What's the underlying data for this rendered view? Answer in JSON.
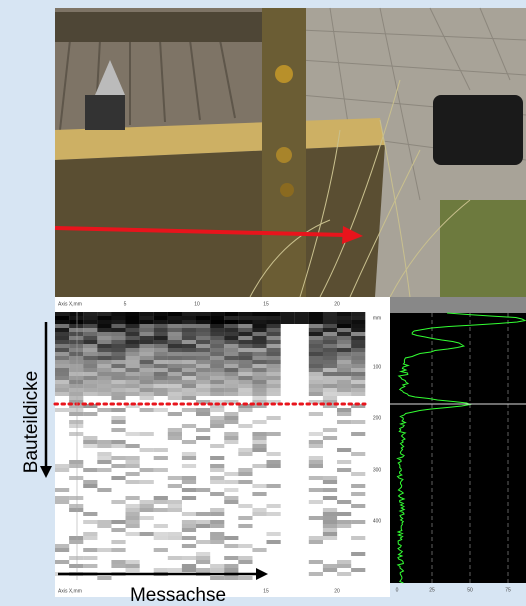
{
  "labels": {
    "vertical": "Bauteildicke",
    "horizontal": "Messachse"
  },
  "scan": {
    "x_axis_title": "Axis X,mm",
    "x_ticks": [
      "5",
      "10",
      "15",
      "20"
    ],
    "bottom_axis_title": "Axis X,mm",
    "bottom_x_ticks": [
      "15",
      "20"
    ],
    "depth_unit": "mm",
    "depth_ticks": [
      "100",
      "200",
      "300",
      "400"
    ],
    "amplitude_ticks": [
      "0",
      "25",
      "50",
      "75"
    ]
  }
}
